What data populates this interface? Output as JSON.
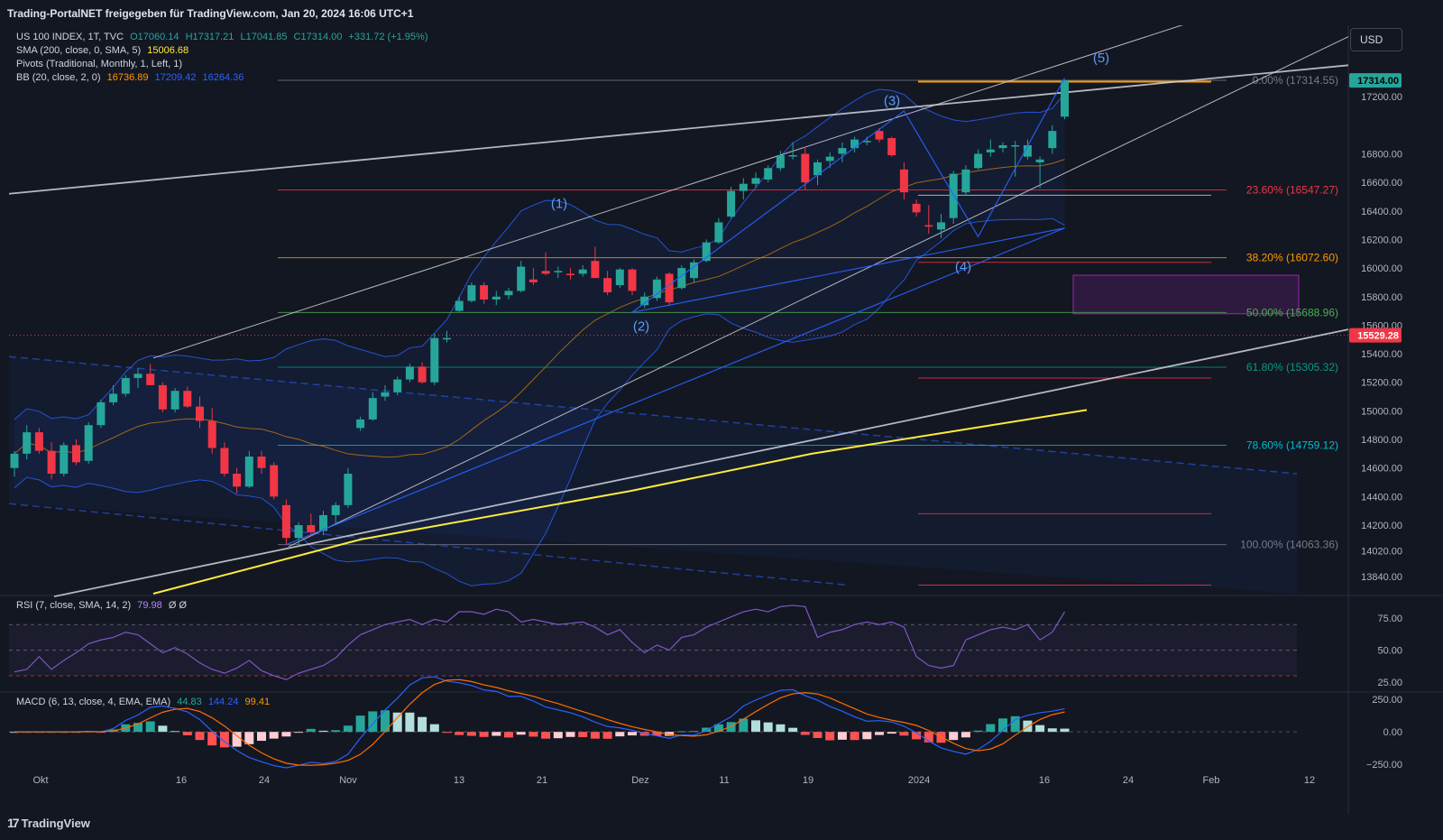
{
  "header": {
    "source_text": "Trading-PortalNET freigegeben für TradingView.com, Jan 20, 2024 16:06 UTC+1"
  },
  "currency_button": "USD",
  "legend": {
    "symbol": "US 100 INDEX, 1T, TVC",
    "ohlc": {
      "o": "O17060.14",
      "h": "H17317.21",
      "l": "L17041.85",
      "c": "C17314.00",
      "chg": "+331.72 (+1.95%)"
    },
    "sma_label": "SMA (200, close, 0, SMA, 5)",
    "sma_value": "15006.68",
    "pivots_label": "Pivots (Traditional, Monthly, 1, Left, 1)",
    "bb_label": "BB (20, close, 2, 0)",
    "bb_values": [
      "16736.89",
      "17209.42",
      "16264.36"
    ],
    "rsi_label": "RSI (7, close, SMA, 14, 2)",
    "rsi_value": "79.98",
    "rsi_extra": "Ø Ø",
    "macd_label": "MACD (6, 13, close, 4, EMA, EMA)",
    "macd_values": [
      "44.83",
      "144.24",
      "99.41"
    ]
  },
  "brand": "TradingView",
  "colors": {
    "up": "#26a69a",
    "down": "#f23645",
    "bg": "#131722",
    "grid": "#1e222d",
    "text": "#d1d4dc",
    "sma": "#ffeb3b",
    "bb": "#2962ff",
    "basis": "#ff9800",
    "rsi": "#7e57c2",
    "macd": "#2962ff",
    "signal": "#ff6d00"
  },
  "chart_data": {
    "type": "candlestick",
    "title": "US 100 INDEX, 1T, TVC",
    "price_axis_ticks": [
      17200,
      16800,
      16600,
      16400,
      16200,
      16000,
      15800,
      15600,
      15400,
      15200,
      15000,
      14800,
      14600,
      14400,
      14200,
      14020,
      13840
    ],
    "time_axis_ticks": [
      "Okt",
      "16",
      "24",
      "Nov",
      "13",
      "21",
      "Dez",
      "11",
      "19",
      "2024",
      "16",
      "24",
      "Feb",
      "12"
    ],
    "ylim": [
      13720,
      17700
    ],
    "last_price_label": "17314.00",
    "marked_price_label": "15529.28",
    "fib_levels": [
      {
        "label": "0.00% (17314.55)",
        "price": 17314.55,
        "color": "#787b86"
      },
      {
        "label": "23.60% (16547.27)",
        "price": 16547.27,
        "color": "#f23645"
      },
      {
        "label": "38.20% (16072.60)",
        "price": 16072.6,
        "color": "#ff9800"
      },
      {
        "label": "50.00% (15688.96)",
        "price": 15688.96,
        "color": "#4caf50"
      },
      {
        "label": "61.80% (15305.32)",
        "price": 15305.32,
        "color": "#089981"
      },
      {
        "label": "78.60% (14759.12)",
        "price": 14759.12,
        "color": "#00bcd4"
      },
      {
        "label": "100.00% (14063.36)",
        "price": 14063.36,
        "color": "#787b86"
      }
    ],
    "wave_labels": [
      "(1)",
      "(2)",
      "(3)",
      "(4)",
      "(5)"
    ],
    "candles": [
      {
        "o": 14600,
        "h": 14720,
        "l": 14540,
        "c": 14700
      },
      {
        "o": 14700,
        "h": 14900,
        "l": 14660,
        "c": 14850
      },
      {
        "o": 14850,
        "h": 14880,
        "l": 14700,
        "c": 14720
      },
      {
        "o": 14720,
        "h": 14780,
        "l": 14520,
        "c": 14560
      },
      {
        "o": 14560,
        "h": 14780,
        "l": 14540,
        "c": 14760
      },
      {
        "o": 14760,
        "h": 14800,
        "l": 14620,
        "c": 14640
      },
      {
        "o": 14650,
        "h": 14920,
        "l": 14630,
        "c": 14900
      },
      {
        "o": 14900,
        "h": 15080,
        "l": 14880,
        "c": 15060
      },
      {
        "o": 15060,
        "h": 15180,
        "l": 15040,
        "c": 15120
      },
      {
        "o": 15120,
        "h": 15250,
        "l": 15100,
        "c": 15230
      },
      {
        "o": 15230,
        "h": 15300,
        "l": 15160,
        "c": 15260
      },
      {
        "o": 15260,
        "h": 15330,
        "l": 15180,
        "c": 15180
      },
      {
        "o": 15180,
        "h": 15200,
        "l": 14990,
        "c": 15010
      },
      {
        "o": 15010,
        "h": 15160,
        "l": 14990,
        "c": 15140
      },
      {
        "o": 15140,
        "h": 15170,
        "l": 15020,
        "c": 15030
      },
      {
        "o": 15030,
        "h": 15100,
        "l": 14880,
        "c": 14930
      },
      {
        "o": 14930,
        "h": 15020,
        "l": 14700,
        "c": 14740
      },
      {
        "o": 14740,
        "h": 14780,
        "l": 14540,
        "c": 14560
      },
      {
        "o": 14560,
        "h": 14600,
        "l": 14420,
        "c": 14470
      },
      {
        "o": 14470,
        "h": 14720,
        "l": 14460,
        "c": 14680
      },
      {
        "o": 14680,
        "h": 14720,
        "l": 14560,
        "c": 14600
      },
      {
        "o": 14620,
        "h": 14640,
        "l": 14380,
        "c": 14400
      },
      {
        "o": 14340,
        "h": 14380,
        "l": 14060,
        "c": 14110
      },
      {
        "o": 14110,
        "h": 14220,
        "l": 14060,
        "c": 14200
      },
      {
        "o": 14200,
        "h": 14280,
        "l": 14120,
        "c": 14150
      },
      {
        "o": 14160,
        "h": 14300,
        "l": 14130,
        "c": 14270
      },
      {
        "o": 14270,
        "h": 14360,
        "l": 14200,
        "c": 14340
      },
      {
        "o": 14340,
        "h": 14600,
        "l": 14320,
        "c": 14560
      },
      {
        "o": 14880,
        "h": 14960,
        "l": 14860,
        "c": 14940
      },
      {
        "o": 14940,
        "h": 15130,
        "l": 14930,
        "c": 15090
      },
      {
        "o": 15100,
        "h": 15180,
        "l": 15070,
        "c": 15130
      },
      {
        "o": 15130,
        "h": 15240,
        "l": 15110,
        "c": 15220
      },
      {
        "o": 15220,
        "h": 15330,
        "l": 15200,
        "c": 15310
      },
      {
        "o": 15310,
        "h": 15340,
        "l": 15190,
        "c": 15200
      },
      {
        "o": 15200,
        "h": 15540,
        "l": 15180,
        "c": 15510
      },
      {
        "o": 15500,
        "h": 15560,
        "l": 15480,
        "c": 15510
      },
      {
        "o": 15700,
        "h": 15800,
        "l": 15690,
        "c": 15770
      },
      {
        "o": 15770,
        "h": 15900,
        "l": 15760,
        "c": 15880
      },
      {
        "o": 15880,
        "h": 15900,
        "l": 15750,
        "c": 15780
      },
      {
        "o": 15780,
        "h": 15840,
        "l": 15740,
        "c": 15800
      },
      {
        "o": 15810,
        "h": 15860,
        "l": 15780,
        "c": 15840
      },
      {
        "o": 15840,
        "h": 16050,
        "l": 15830,
        "c": 16010
      },
      {
        "o": 15920,
        "h": 16000,
        "l": 15880,
        "c": 15900
      },
      {
        "o": 15980,
        "h": 16110,
        "l": 15950,
        "c": 15960
      },
      {
        "o": 15970,
        "h": 16010,
        "l": 15930,
        "c": 15980
      },
      {
        "o": 15960,
        "h": 16000,
        "l": 15920,
        "c": 15950
      },
      {
        "o": 15960,
        "h": 16020,
        "l": 15940,
        "c": 15990
      },
      {
        "o": 16050,
        "h": 16150,
        "l": 15930,
        "c": 15930
      },
      {
        "o": 15930,
        "h": 15980,
        "l": 15810,
        "c": 15830
      },
      {
        "o": 15880,
        "h": 16000,
        "l": 15860,
        "c": 15990
      },
      {
        "o": 15990,
        "h": 16000,
        "l": 15810,
        "c": 15840
      },
      {
        "o": 15740,
        "h": 15830,
        "l": 15720,
        "c": 15800
      },
      {
        "o": 15790,
        "h": 15940,
        "l": 15770,
        "c": 15920
      },
      {
        "o": 15960,
        "h": 15970,
        "l": 15740,
        "c": 15760
      },
      {
        "o": 15860,
        "h": 16020,
        "l": 15850,
        "c": 16000
      },
      {
        "o": 15930,
        "h": 16060,
        "l": 15900,
        "c": 16040
      },
      {
        "o": 16050,
        "h": 16200,
        "l": 16040,
        "c": 16180
      },
      {
        "o": 16180,
        "h": 16350,
        "l": 16170,
        "c": 16320
      },
      {
        "o": 16360,
        "h": 16570,
        "l": 16350,
        "c": 16540
      },
      {
        "o": 16540,
        "h": 16630,
        "l": 16480,
        "c": 16590
      },
      {
        "o": 16590,
        "h": 16670,
        "l": 16560,
        "c": 16630
      },
      {
        "o": 16620,
        "h": 16720,
        "l": 16600,
        "c": 16700
      },
      {
        "o": 16700,
        "h": 16820,
        "l": 16680,
        "c": 16790
      },
      {
        "o": 16790,
        "h": 16880,
        "l": 16760,
        "c": 16790
      },
      {
        "o": 16800,
        "h": 16850,
        "l": 16550,
        "c": 16600
      },
      {
        "o": 16650,
        "h": 16760,
        "l": 16580,
        "c": 16740
      },
      {
        "o": 16750,
        "h": 16810,
        "l": 16700,
        "c": 16780
      },
      {
        "o": 16800,
        "h": 16880,
        "l": 16740,
        "c": 16840
      },
      {
        "o": 16840,
        "h": 16920,
        "l": 16810,
        "c": 16900
      },
      {
        "o": 16890,
        "h": 16920,
        "l": 16860,
        "c": 16890
      },
      {
        "o": 16960,
        "h": 16980,
        "l": 16880,
        "c": 16900
      },
      {
        "o": 16910,
        "h": 16920,
        "l": 16780,
        "c": 16790
      },
      {
        "o": 16690,
        "h": 16740,
        "l": 16480,
        "c": 16530
      },
      {
        "o": 16450,
        "h": 16480,
        "l": 16360,
        "c": 16390
      },
      {
        "o": 16300,
        "h": 16440,
        "l": 16240,
        "c": 16290
      },
      {
        "o": 16270,
        "h": 16380,
        "l": 16210,
        "c": 16320
      },
      {
        "o": 16350,
        "h": 16680,
        "l": 16310,
        "c": 16660
      },
      {
        "o": 16530,
        "h": 16720,
        "l": 16510,
        "c": 16690
      },
      {
        "o": 16700,
        "h": 16830,
        "l": 16690,
        "c": 16800
      },
      {
        "o": 16810,
        "h": 16900,
        "l": 16780,
        "c": 16830
      },
      {
        "o": 16840,
        "h": 16880,
        "l": 16810,
        "c": 16860
      },
      {
        "o": 16860,
        "h": 16890,
        "l": 16640,
        "c": 16860
      },
      {
        "o": 16780,
        "h": 16900,
        "l": 16760,
        "c": 16860
      },
      {
        "o": 16740,
        "h": 16780,
        "l": 16560,
        "c": 16760
      },
      {
        "o": 16840,
        "h": 17000,
        "l": 16800,
        "c": 16960
      },
      {
        "o": 17060.14,
        "h": 17317.21,
        "l": 17041.85,
        "c": 17314.0
      }
    ]
  }
}
